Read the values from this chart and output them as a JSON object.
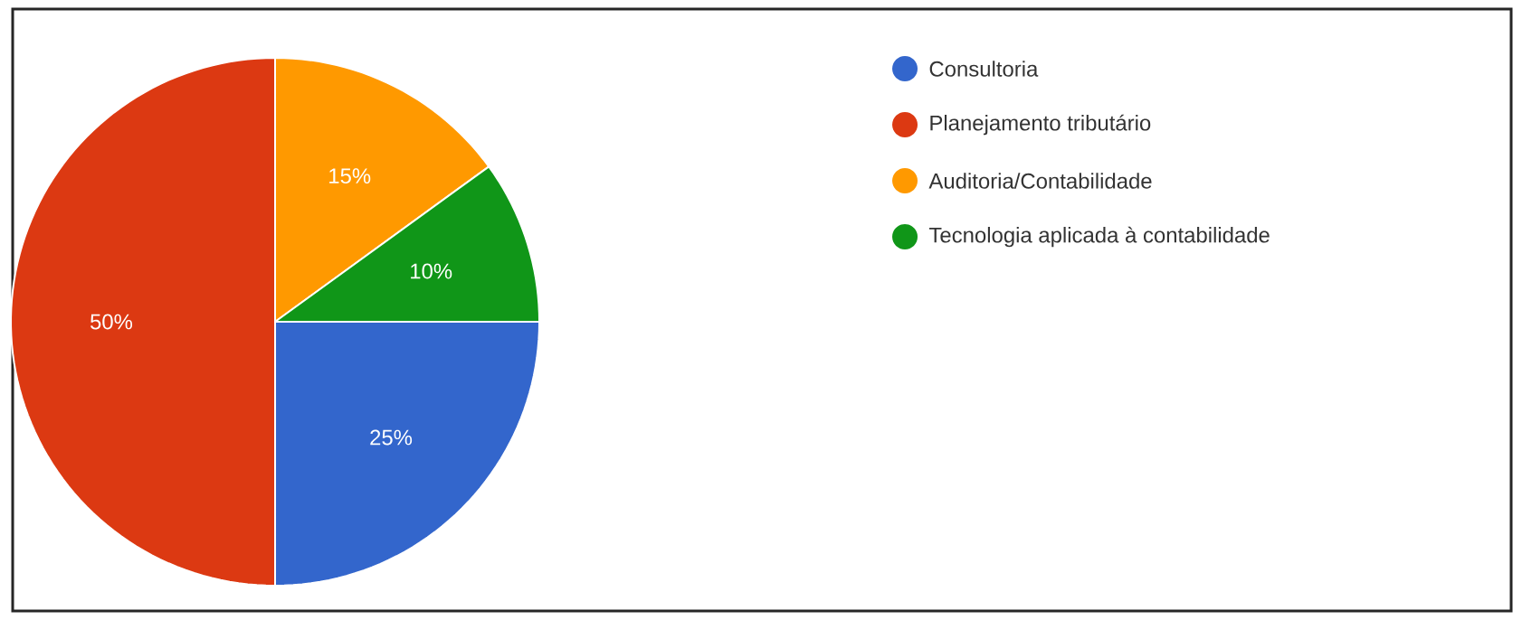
{
  "chart_data": {
    "type": "pie",
    "categories": [
      "Consultoria",
      "Planejamento tributário",
      "Auditoria/Contabilidade",
      "Tecnologia aplicada à contabilidade"
    ],
    "values": [
      25,
      50,
      15,
      10
    ],
    "value_labels": [
      "25%",
      "50%",
      "15%",
      "10%"
    ],
    "colors": [
      "#3366cc",
      "#dc3912",
      "#ff9900",
      "#109618"
    ],
    "legend": "right"
  }
}
